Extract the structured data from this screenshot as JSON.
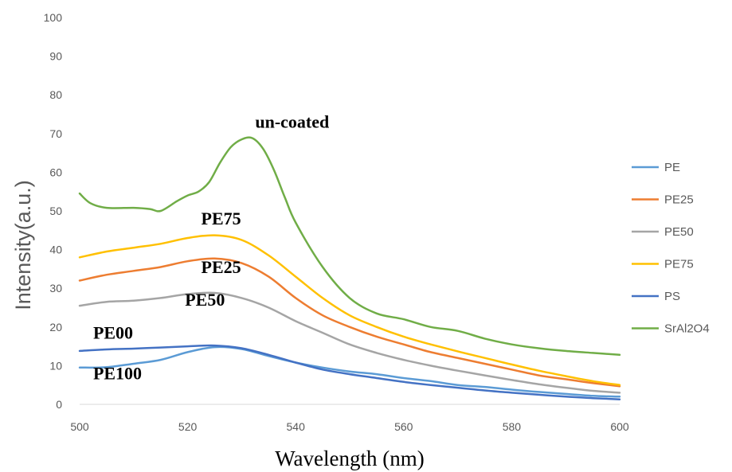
{
  "chart_data": {
    "type": "line",
    "xlabel": "Wavelength (nm)",
    "ylabel": "Intensity(a.u.)",
    "xlim": [
      500,
      600
    ],
    "ylim": [
      0,
      100
    ],
    "xticks": [
      500,
      520,
      540,
      560,
      580,
      600
    ],
    "yticks": [
      0,
      10,
      20,
      30,
      40,
      50,
      60,
      70,
      80,
      90,
      100
    ],
    "grid": false,
    "legend_position": "right",
    "series": [
      {
        "name": "PE",
        "color": "#5B9BD5",
        "x": [
          500,
          505,
          510,
          515,
          520,
          525,
          530,
          535,
          540,
          545,
          550,
          555,
          560,
          565,
          570,
          575,
          580,
          585,
          590,
          595,
          600
        ],
        "y": [
          9.5,
          9.6,
          10.5,
          11.5,
          13.5,
          14.8,
          14.3,
          12.5,
          10.8,
          9.5,
          8.5,
          7.8,
          6.8,
          6.0,
          5.0,
          4.5,
          3.8,
          3.2,
          2.7,
          2.2,
          2.0
        ]
      },
      {
        "name": "PE25",
        "color": "#ED7D31",
        "x": [
          500,
          505,
          510,
          515,
          520,
          525,
          530,
          535,
          540,
          545,
          550,
          555,
          560,
          565,
          570,
          575,
          580,
          585,
          590,
          595,
          600
        ],
        "y": [
          32.0,
          33.5,
          34.5,
          35.5,
          37.0,
          37.7,
          36.5,
          33.0,
          27.5,
          23.0,
          20.0,
          17.5,
          15.5,
          13.5,
          12.0,
          10.5,
          9.0,
          7.5,
          6.5,
          5.5,
          4.7
        ]
      },
      {
        "name": "PE50",
        "color": "#A5A5A5",
        "x": [
          500,
          505,
          510,
          515,
          520,
          525,
          530,
          535,
          540,
          545,
          550,
          555,
          560,
          565,
          570,
          575,
          580,
          585,
          590,
          595,
          600
        ],
        "y": [
          25.5,
          26.5,
          26.8,
          27.5,
          28.5,
          28.8,
          27.5,
          25.0,
          21.5,
          18.5,
          15.5,
          13.3,
          11.5,
          10.0,
          8.7,
          7.5,
          6.3,
          5.2,
          4.3,
          3.5,
          3.0
        ]
      },
      {
        "name": "PE75",
        "color": "#FFC000",
        "x": [
          500,
          505,
          510,
          515,
          520,
          525,
          530,
          535,
          540,
          545,
          550,
          555,
          560,
          565,
          570,
          575,
          580,
          585,
          590,
          595,
          600
        ],
        "y": [
          38.0,
          39.5,
          40.5,
          41.5,
          43.0,
          43.7,
          42.5,
          38.5,
          33.0,
          27.5,
          23.0,
          20.0,
          17.5,
          15.5,
          13.7,
          12.0,
          10.3,
          8.7,
          7.3,
          6.0,
          5.0
        ]
      },
      {
        "name": "PS",
        "color": "#4472C4",
        "x": [
          500,
          505,
          510,
          515,
          520,
          525,
          530,
          535,
          540,
          545,
          550,
          555,
          560,
          565,
          570,
          575,
          580,
          585,
          590,
          595,
          600
        ],
        "y": [
          13.8,
          14.2,
          14.4,
          14.7,
          15.0,
          15.2,
          14.5,
          12.8,
          10.8,
          9.0,
          7.8,
          6.8,
          5.8,
          5.0,
          4.3,
          3.6,
          3.0,
          2.5,
          2.0,
          1.6,
          1.3
        ]
      },
      {
        "name": "SrAl2O4",
        "color": "#70AD47",
        "x": [
          500,
          502,
          505,
          510,
          513,
          515,
          518,
          520,
          522,
          524,
          526,
          528,
          530,
          532,
          534,
          536,
          538,
          540,
          545,
          550,
          555,
          560,
          565,
          570,
          575,
          580,
          585,
          590,
          595,
          600
        ],
        "y": [
          54.5,
          52.0,
          50.8,
          50.8,
          50.5,
          50.0,
          52.5,
          54.0,
          55.0,
          57.5,
          62.5,
          66.5,
          68.5,
          68.8,
          66.0,
          60.5,
          53.5,
          47.0,
          35.5,
          27.5,
          23.5,
          22.0,
          20.0,
          19.0,
          17.0,
          15.5,
          14.5,
          13.8,
          13.3,
          12.8
        ]
      }
    ],
    "annotations": [
      {
        "text": "un-coated",
        "x": 532.5,
        "y": 71.5
      },
      {
        "text": "PE75",
        "x": 522.5,
        "y": 46.5
      },
      {
        "text": "PE25",
        "x": 522.5,
        "y": 34.0
      },
      {
        "text": "PE50",
        "x": 519.5,
        "y": 25.5
      },
      {
        "text": "PE00",
        "x": 502.5,
        "y": 17.0
      },
      {
        "text": "PE100",
        "x": 502.5,
        "y": 6.5
      }
    ]
  }
}
